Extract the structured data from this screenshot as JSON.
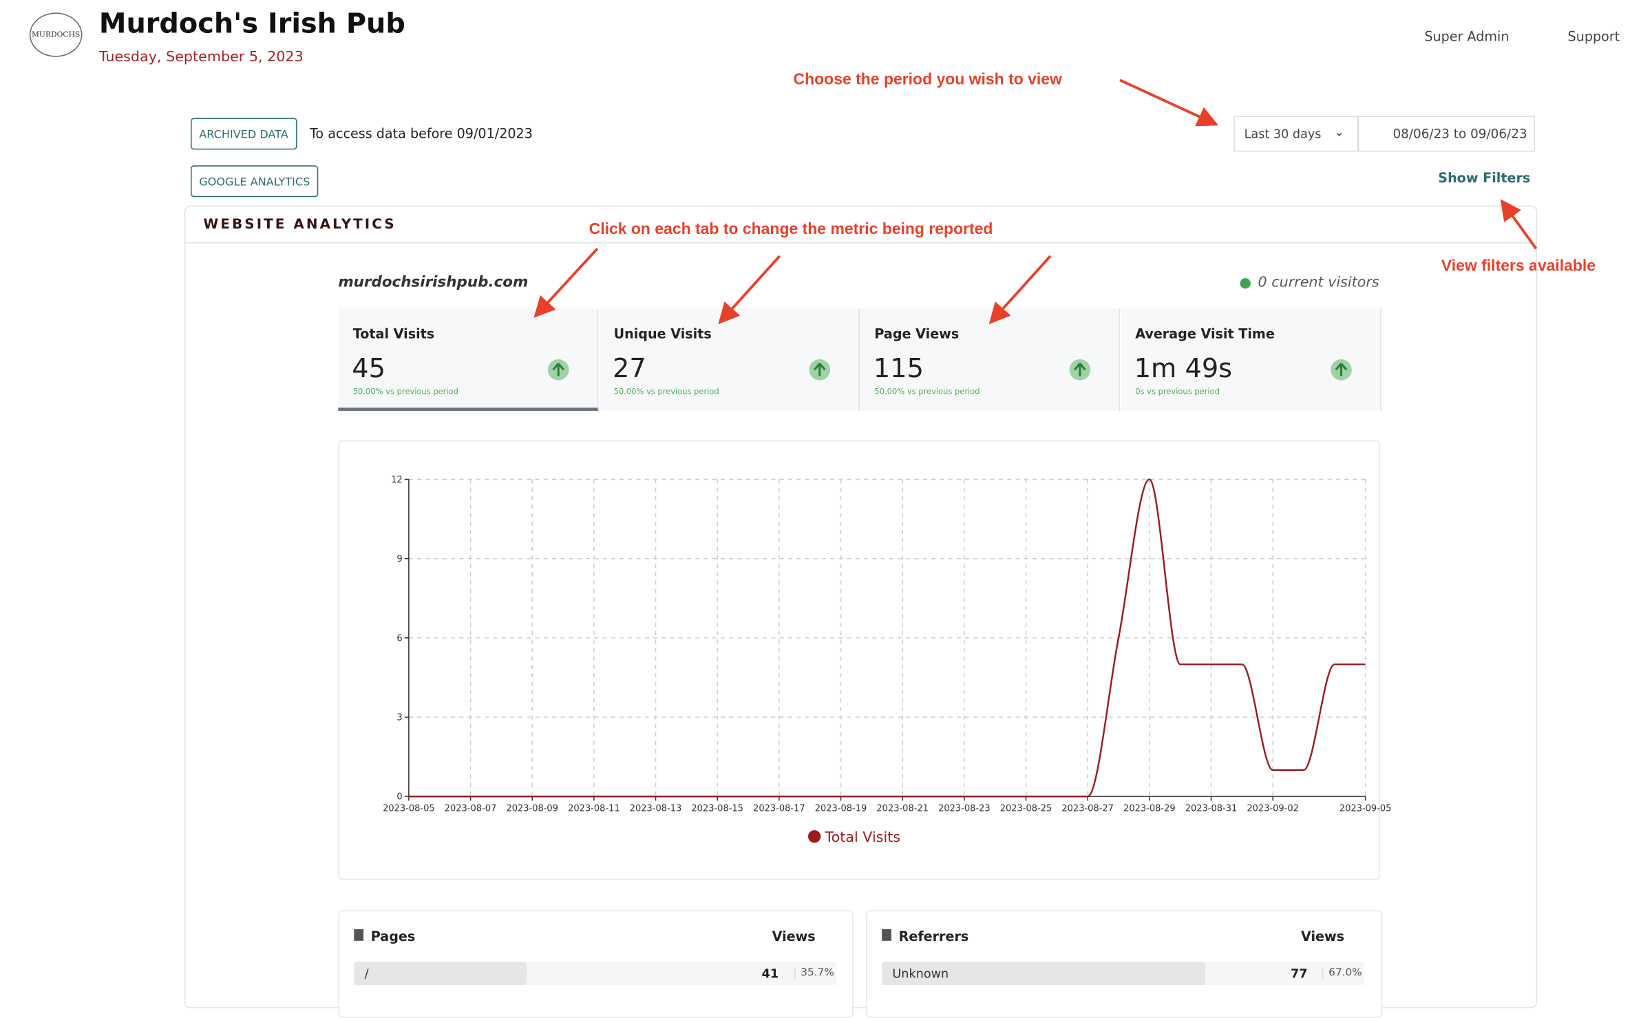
{
  "header": {
    "logo_text": "MURDOCHS",
    "title": "Murdoch's Irish Pub",
    "date": "Tuesday, September 5, 2023",
    "user": "Super Admin",
    "support": "Support"
  },
  "annotations": [
    "Choose the period you wish to view",
    "Click on each tab to change the metric being reported",
    "View filters available"
  ],
  "controls": {
    "archived_button": "ARCHIVED DATA",
    "archived_note": "To access data before 09/01/2023",
    "ga_button": "GOOGLE ANALYTICS",
    "period": "Last 30 days",
    "date_range": "08/06/23 to 09/06/23",
    "filters": "Show Filters"
  },
  "panel": {
    "title": "WEBSITE ANALYTICS",
    "site": "murdochsirishpub.com",
    "current_visitors": "0 current visitors"
  },
  "metrics": [
    {
      "label": "Total Visits",
      "value": 45,
      "change": "50.00% vs previous period"
    },
    {
      "label": "Unique Visits",
      "value": 27,
      "change": "50.00% vs previous period"
    },
    {
      "label": "Page Views",
      "value": 115,
      "change": "50.00% vs previous period"
    },
    {
      "label": "Average Visit Time",
      "value": "1m 49s",
      "change": "0s vs previous period"
    }
  ],
  "chart_data": {
    "type": "line",
    "categories": [
      "2023-08-05",
      null,
      "2023-08-07",
      null,
      "2023-08-09",
      null,
      "2023-08-11",
      null,
      "2023-08-13",
      null,
      "2023-08-15",
      null,
      "2023-08-17",
      null,
      "2023-08-19",
      null,
      "2023-08-21",
      null,
      "2023-08-23",
      null,
      "2023-08-25",
      null,
      "2023-08-27",
      null,
      "2023-08-29",
      null,
      "2023-08-31",
      null,
      "2023-09-02",
      null,
      null,
      "2023-09-05"
    ],
    "series": [
      {
        "name": "Total Visits",
        "color": "#9b1c1f",
        "values": [
          0,
          0,
          0,
          0,
          0,
          0,
          0,
          0,
          0,
          0,
          0,
          0,
          0,
          0,
          0,
          0,
          0,
          0,
          0,
          0,
          0,
          0,
          0,
          6,
          12,
          5,
          5,
          5,
          1,
          1,
          5,
          5
        ]
      }
    ],
    "ylim": [
      0,
      12
    ],
    "yticks": [
      0,
      3,
      6,
      9,
      12
    ],
    "grid": true
  },
  "tables": [
    {
      "title": "Pages",
      "column": "Views",
      "rows": [
        {
          "label": "/",
          "views": 41,
          "share": 35.7,
          "share_label": "35.7%"
        }
      ]
    },
    {
      "title": "Referrers",
      "column": "Views",
      "rows": [
        {
          "label": "Unknown",
          "views": 77,
          "share": 67.0,
          "share_label": "67.0%"
        }
      ]
    }
  ]
}
